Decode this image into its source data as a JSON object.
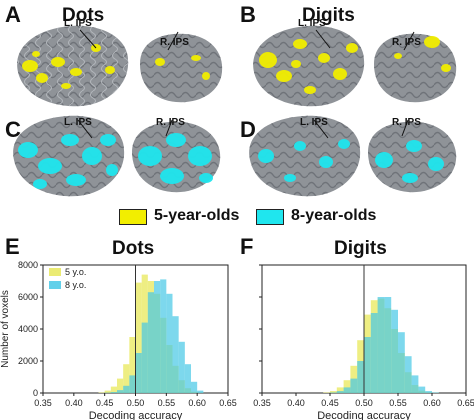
{
  "panels": {
    "A": {
      "letter": "A",
      "title": "Dots"
    },
    "B": {
      "letter": "B",
      "title": "Digits"
    },
    "C": {
      "letter": "C"
    },
    "D": {
      "letter": "D"
    },
    "E": {
      "letter": "E",
      "title": "Dots"
    },
    "F": {
      "letter": "F",
      "title": "Digits"
    }
  },
  "labels": {
    "left_ips": "L. IPS",
    "right_ips": "R. IPS"
  },
  "legend": [
    {
      "label": "5-year-olds",
      "color": "#f2ee00"
    },
    {
      "label": "8-year-olds",
      "color": "#1fe6ee"
    }
  ],
  "colors": {
    "brain": "#8f9398",
    "five": "#e8e85a",
    "eight": "#46c8e6",
    "overlap": "#5cc7a0"
  },
  "chart_data": [
    {
      "type": "bar",
      "title": "Dots",
      "xlabel": "Decoding accuracy",
      "ylabel": "Number of voxels",
      "xlim": [
        0.35,
        0.65
      ],
      "ylim": [
        0,
        8000
      ],
      "xticks": [
        "0.35",
        "0.40",
        "0.45",
        "0.50",
        "0.55",
        "0.60",
        "0.65"
      ],
      "yticks": [
        "0",
        "2000",
        "4000",
        "6000",
        "8000"
      ],
      "reference_line": 0.5,
      "bin_width": 0.01,
      "bin_starts": [
        0.43,
        0.44,
        0.45,
        0.46,
        0.47,
        0.48,
        0.49,
        0.5,
        0.51,
        0.52,
        0.53,
        0.54,
        0.55,
        0.56,
        0.57,
        0.58,
        0.59,
        0.6
      ],
      "series": [
        {
          "name": "5 y.o.",
          "color": "#e8e85a",
          "values": [
            0,
            30,
            150,
            400,
            900,
            1800,
            3500,
            6900,
            7400,
            7000,
            6200,
            4700,
            3000,
            1700,
            800,
            300,
            80,
            20
          ]
        },
        {
          "name": "8 y.o.",
          "color": "#46c8e6",
          "values": [
            0,
            0,
            20,
            60,
            180,
            450,
            1100,
            2500,
            4400,
            6300,
            7000,
            7100,
            6200,
            4800,
            3200,
            1800,
            700,
            150
          ]
        }
      ],
      "legend_position": "top-left"
    },
    {
      "type": "bar",
      "title": "Digits",
      "xlabel": "Decoding accuracy",
      "ylabel": "",
      "xlim": [
        0.35,
        0.65
      ],
      "ylim": [
        0,
        8000
      ],
      "xticks": [
        "0.35",
        "0.40",
        "0.45",
        "0.50",
        "0.55",
        "0.60",
        "0.65"
      ],
      "yticks": [],
      "reference_line": 0.5,
      "bin_width": 0.01,
      "bin_starts": [
        0.43,
        0.44,
        0.45,
        0.46,
        0.47,
        0.48,
        0.49,
        0.5,
        0.51,
        0.52,
        0.53,
        0.54,
        0.55,
        0.56,
        0.57,
        0.58,
        0.59,
        0.6
      ],
      "series": [
        {
          "name": "5 y.o.",
          "color": "#e8e85a",
          "values": [
            0,
            30,
            120,
            350,
            800,
            1700,
            3300,
            4900,
            5800,
            5900,
            5300,
            4000,
            2500,
            1300,
            500,
            150,
            40,
            10
          ]
        },
        {
          "name": "8 y.o.",
          "color": "#46c8e6",
          "values": [
            0,
            0,
            30,
            120,
            350,
            900,
            2000,
            3500,
            5000,
            6000,
            6000,
            5200,
            3800,
            2300,
            1100,
            400,
            120,
            30
          ]
        }
      ]
    }
  ]
}
